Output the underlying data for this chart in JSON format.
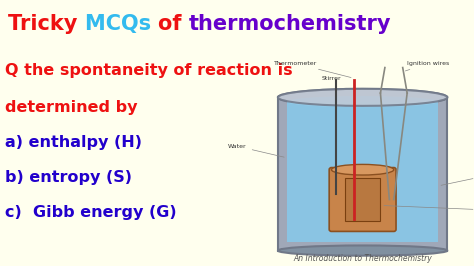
{
  "title_parts": [
    {
      "text": "Tricky ",
      "color": "#EE1111",
      "bold": true
    },
    {
      "text": "MCQs ",
      "color": "#33BBEE",
      "bold": true
    },
    {
      "text": "of ",
      "color": "#EE1111",
      "bold": true
    },
    {
      "text": "thermochemistry",
      "color": "#6600CC",
      "bold": true
    }
  ],
  "title_bg": "#FFEE00",
  "body_bg": "#FFFFEE",
  "question_color": "#EE1111",
  "answer_color": "#2200CC",
  "question_line1": "Q the spontaneity of reaction is",
  "question_line2": "determined by",
  "answers": [
    "a) enthalpy (H)",
    "b) entropy (S)",
    "c)  Gibb energy (G)"
  ],
  "caption": "An Introduction to Thermochemistry",
  "caption_color": "#555555",
  "title_fontsize": 15,
  "body_fontsize": 11.5,
  "figsize": [
    4.74,
    2.66
  ],
  "dpi": 100
}
